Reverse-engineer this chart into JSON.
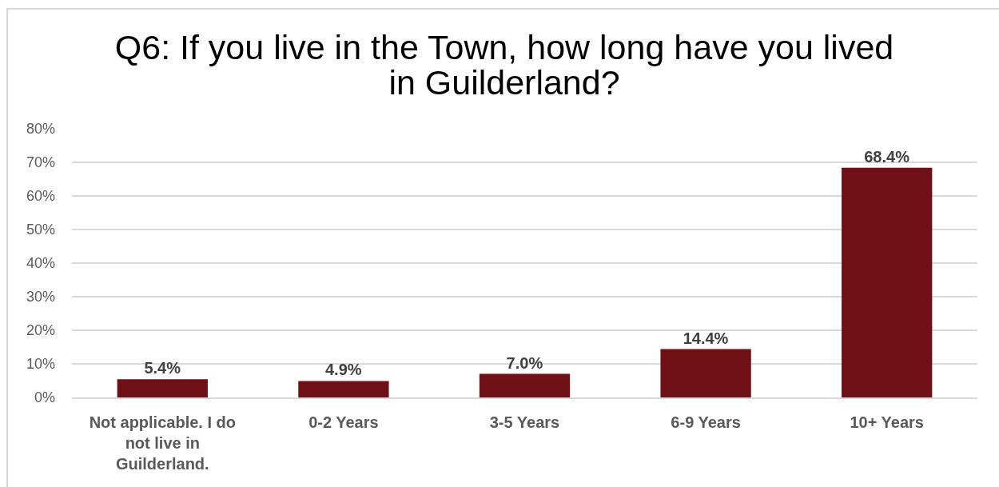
{
  "chart_data": {
    "type": "bar",
    "title": "Q6: If you live in the Town, how long have you lived in Guilderland?",
    "categories": [
      "Not applicable. I do not live in Guilderland.",
      "0-2 Years",
      "3-5 Years",
      "6-9 Years",
      "10+ Years"
    ],
    "values": [
      5.4,
      4.9,
      7.0,
      14.4,
      68.4
    ],
    "value_labels": [
      "5.4%",
      "4.9%",
      "7.0%",
      "14.4%",
      "68.4%"
    ],
    "color": "#6f1016",
    "ylim": [
      0,
      80
    ],
    "yticks": [
      {
        "value": 0,
        "label": "0%"
      },
      {
        "value": 10,
        "label": "10%"
      },
      {
        "value": 20,
        "label": "20%"
      },
      {
        "value": 30,
        "label": "30%"
      },
      {
        "value": 40,
        "label": "40%"
      },
      {
        "value": 50,
        "label": "50%"
      },
      {
        "value": 60,
        "label": "60%"
      },
      {
        "value": 70,
        "label": "70%"
      },
      {
        "value": 80,
        "label": "80%"
      }
    ],
    "grid": "y"
  }
}
